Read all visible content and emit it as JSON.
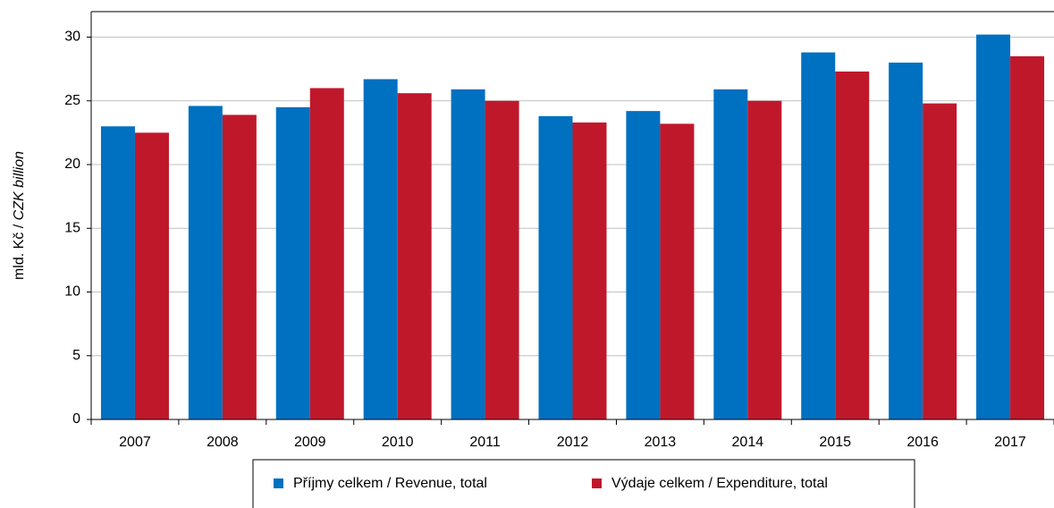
{
  "chart_data": {
    "type": "bar",
    "y_label": [
      "mld. Kč /",
      "CZK billion"
    ],
    "categories": [
      "2007",
      "2008",
      "2009",
      "2010",
      "2011",
      "2012",
      "2013",
      "2014",
      "2015",
      "2016",
      "2017"
    ],
    "series": [
      {
        "name": "Příjmy  celkem / Revenue, total",
        "color": "#0070c0",
        "values": [
          23.0,
          24.6,
          24.5,
          26.7,
          25.9,
          23.8,
          24.2,
          25.9,
          28.8,
          28.0,
          30.2
        ]
      },
      {
        "name": "Výdaje celkem / Expenditure, total",
        "color": "#c0182b",
        "values": [
          22.5,
          23.9,
          26.0,
          25.6,
          25.0,
          23.3,
          23.2,
          25.0,
          27.3,
          24.8,
          28.5
        ]
      }
    ],
    "ylim": [
      0,
      32
    ],
    "yticks": [
      0,
      5,
      10,
      15,
      20,
      25,
      30
    ],
    "grid": true,
    "legend": "bottom"
  }
}
